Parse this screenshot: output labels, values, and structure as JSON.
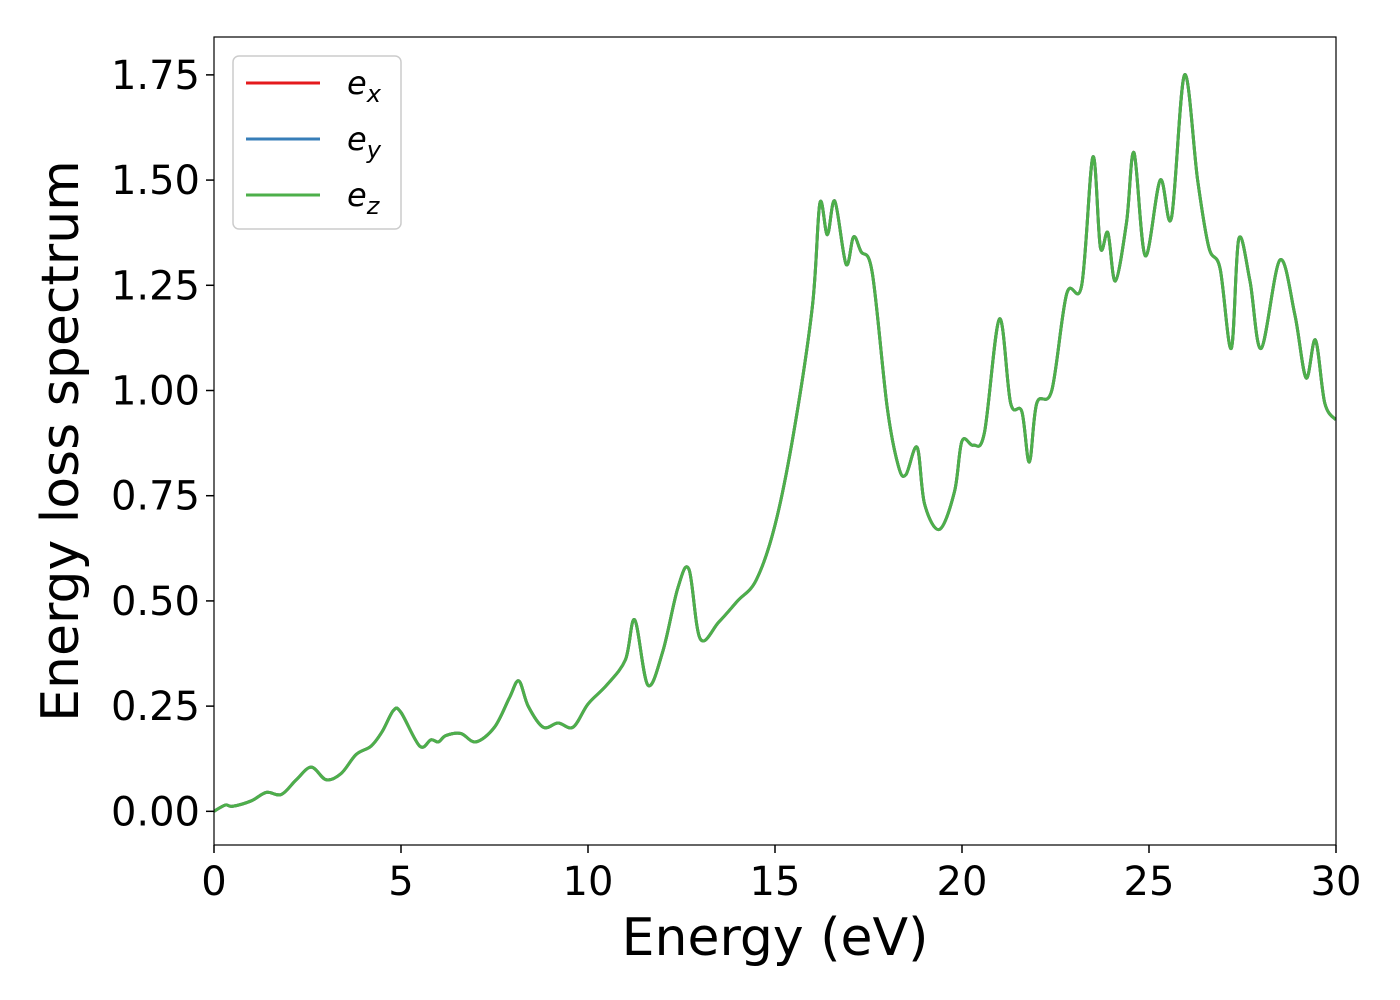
{
  "chart_data": {
    "type": "line",
    "title": "",
    "xlabel": "Energy (eV)",
    "ylabel": "Energy loss spectrum",
    "xlim": [
      0,
      30
    ],
    "ylim": [
      -0.08,
      1.84
    ],
    "xticks": [
      0,
      5,
      10,
      15,
      20,
      25,
      30
    ],
    "xtick_labels": [
      "0",
      "5",
      "10",
      "15",
      "20",
      "25",
      "30"
    ],
    "yticks": [
      0.0,
      0.25,
      0.5,
      0.75,
      1.0,
      1.25,
      1.5,
      1.75
    ],
    "ytick_labels": [
      "0.00",
      "0.25",
      "0.50",
      "0.75",
      "1.00",
      "1.25",
      "1.50",
      "1.75"
    ],
    "grid": false,
    "legend_position": "top-left",
    "legend": [
      {
        "base": "e",
        "sub": "x",
        "color": "#e41a1c"
      },
      {
        "base": "e",
        "sub": "y",
        "color": "#377eb8"
      },
      {
        "base": "e",
        "sub": "z",
        "color": "#4daf4a"
      }
    ],
    "x": [
      0,
      0.3,
      0.5,
      1.0,
      1.4,
      1.8,
      2.2,
      2.6,
      3.0,
      3.4,
      3.8,
      4.2,
      4.5,
      4.8,
      5.0,
      5.5,
      5.8,
      6.0,
      6.2,
      6.6,
      7.0,
      7.5,
      7.9,
      8.15,
      8.4,
      8.8,
      9.2,
      9.6,
      10.0,
      10.5,
      11.0,
      11.25,
      11.6,
      12.0,
      12.4,
      12.7,
      13.0,
      13.5,
      14.0,
      14.5,
      15.0,
      15.5,
      16.0,
      16.2,
      16.4,
      16.6,
      16.9,
      17.1,
      17.3,
      17.6,
      18.0,
      18.3,
      18.5,
      18.8,
      19.0,
      19.4,
      19.8,
      20.0,
      20.3,
      20.6,
      21.0,
      21.3,
      21.6,
      21.8,
      22.0,
      22.4,
      22.8,
      23.2,
      23.5,
      23.7,
      23.9,
      24.1,
      24.4,
      24.6,
      24.9,
      25.3,
      25.6,
      25.95,
      26.3,
      26.6,
      26.9,
      27.2,
      27.4,
      27.7,
      28.0,
      28.5,
      28.9,
      29.2,
      29.45,
      29.7,
      30.0
    ],
    "series": [
      {
        "name": "",
        "label_index": 0,
        "color": "#e41a1c",
        "values": [
          0.0,
          0.015,
          0.012,
          0.025,
          0.045,
          0.04,
          0.075,
          0.105,
          0.075,
          0.09,
          0.135,
          0.155,
          0.19,
          0.24,
          0.235,
          0.155,
          0.17,
          0.165,
          0.18,
          0.185,
          0.165,
          0.2,
          0.27,
          0.31,
          0.25,
          0.2,
          0.21,
          0.2,
          0.255,
          0.3,
          0.36,
          0.455,
          0.3,
          0.38,
          0.53,
          0.575,
          0.41,
          0.45,
          0.5,
          0.55,
          0.68,
          0.9,
          1.2,
          1.445,
          1.37,
          1.45,
          1.3,
          1.365,
          1.33,
          1.28,
          0.96,
          0.82,
          0.8,
          0.865,
          0.73,
          0.67,
          0.76,
          0.88,
          0.87,
          0.9,
          1.17,
          0.97,
          0.95,
          0.83,
          0.97,
          1.0,
          1.23,
          1.25,
          1.555,
          1.34,
          1.375,
          1.26,
          1.4,
          1.565,
          1.32,
          1.5,
          1.41,
          1.75,
          1.5,
          1.34,
          1.29,
          1.1,
          1.36,
          1.26,
          1.1,
          1.31,
          1.18,
          1.03,
          1.12,
          0.97,
          0.93
        ]
      },
      {
        "name": "",
        "label_index": 1,
        "color": "#377eb8",
        "values": [
          0.0,
          0.015,
          0.012,
          0.025,
          0.045,
          0.04,
          0.075,
          0.105,
          0.075,
          0.09,
          0.135,
          0.155,
          0.19,
          0.24,
          0.235,
          0.155,
          0.17,
          0.165,
          0.18,
          0.185,
          0.165,
          0.2,
          0.27,
          0.31,
          0.25,
          0.2,
          0.21,
          0.2,
          0.255,
          0.3,
          0.36,
          0.455,
          0.3,
          0.38,
          0.53,
          0.575,
          0.41,
          0.45,
          0.5,
          0.55,
          0.68,
          0.9,
          1.2,
          1.445,
          1.37,
          1.45,
          1.3,
          1.365,
          1.33,
          1.28,
          0.96,
          0.82,
          0.8,
          0.865,
          0.73,
          0.67,
          0.76,
          0.88,
          0.87,
          0.9,
          1.17,
          0.97,
          0.95,
          0.83,
          0.97,
          1.0,
          1.23,
          1.25,
          1.555,
          1.34,
          1.375,
          1.26,
          1.4,
          1.565,
          1.32,
          1.5,
          1.41,
          1.75,
          1.5,
          1.34,
          1.29,
          1.1,
          1.36,
          1.26,
          1.1,
          1.31,
          1.18,
          1.03,
          1.12,
          0.97,
          0.93
        ]
      },
      {
        "name": "",
        "label_index": 2,
        "color": "#4daf4a",
        "values": [
          0.0,
          0.015,
          0.012,
          0.025,
          0.045,
          0.04,
          0.075,
          0.105,
          0.075,
          0.09,
          0.135,
          0.155,
          0.19,
          0.24,
          0.235,
          0.155,
          0.17,
          0.165,
          0.18,
          0.185,
          0.165,
          0.2,
          0.27,
          0.31,
          0.25,
          0.2,
          0.21,
          0.2,
          0.255,
          0.3,
          0.36,
          0.455,
          0.3,
          0.38,
          0.53,
          0.575,
          0.41,
          0.45,
          0.5,
          0.55,
          0.68,
          0.9,
          1.2,
          1.445,
          1.37,
          1.45,
          1.3,
          1.365,
          1.33,
          1.28,
          0.96,
          0.82,
          0.8,
          0.865,
          0.73,
          0.67,
          0.76,
          0.88,
          0.87,
          0.9,
          1.17,
          0.97,
          0.95,
          0.83,
          0.97,
          1.0,
          1.23,
          1.25,
          1.555,
          1.34,
          1.375,
          1.26,
          1.4,
          1.565,
          1.32,
          1.5,
          1.41,
          1.75,
          1.5,
          1.34,
          1.29,
          1.1,
          1.36,
          1.26,
          1.1,
          1.31,
          1.18,
          1.03,
          1.12,
          0.97,
          0.93
        ]
      }
    ]
  }
}
